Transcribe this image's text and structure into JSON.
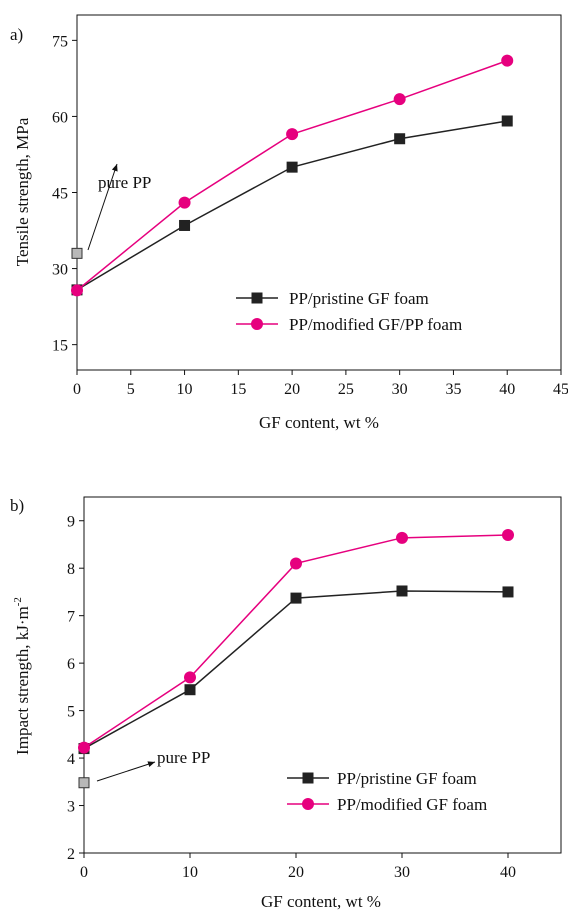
{
  "chart_data": [
    {
      "type": "line",
      "panel_label": "a)",
      "xlabel": "GF content, wt %",
      "ylabel": "Tensile strength, MPa",
      "xlim": [
        0,
        45
      ],
      "ylim": [
        10,
        80
      ],
      "xticks": [
        "0",
        "5",
        "10",
        "15",
        "20",
        "25",
        "30",
        "35",
        "40",
        "45"
      ],
      "yticks": [
        "15",
        "30",
        "45",
        "60",
        "75"
      ],
      "x": [
        0,
        10,
        20,
        30,
        40
      ],
      "series": [
        {
          "name": "PP/pristine GF foam",
          "values": [
            25.8,
            38.5,
            50.0,
            55.6,
            59.1
          ],
          "color": "#222222",
          "marker": "square"
        },
        {
          "name": "PP/modified GF/PP foam",
          "values": [
            25.7,
            43.0,
            56.5,
            63.4,
            71.0
          ],
          "color": "#e6007e",
          "marker": "circle"
        }
      ],
      "annotation": {
        "text": "pure PP",
        "point": [
          0,
          33.0
        ]
      },
      "legend": "center-right"
    },
    {
      "type": "line",
      "panel_label": "b)",
      "xlabel": "GF content, wt %",
      "ylabel_main": "Impact strength, kJ·m",
      "ylabel_sup": "-2",
      "xlim": [
        0,
        45
      ],
      "ylim": [
        2,
        9.5
      ],
      "xticks": [
        "0",
        "10",
        "20",
        "30",
        "40"
      ],
      "yticks": [
        "2",
        "3",
        "4",
        "5",
        "6",
        "7",
        "8",
        "9"
      ],
      "x": [
        0,
        10,
        20,
        30,
        40
      ],
      "series": [
        {
          "name": "PP/pristine GF foam",
          "values": [
            4.2,
            5.44,
            7.37,
            7.52,
            7.5
          ],
          "color": "#222222",
          "marker": "square"
        },
        {
          "name": "PP/modified GF foam",
          "values": [
            4.22,
            5.7,
            8.1,
            8.64,
            8.7
          ],
          "color": "#e6007e",
          "marker": "circle"
        }
      ],
      "annotation": {
        "text": "pure PP",
        "point": [
          0,
          3.48
        ]
      },
      "legend": "lower-right"
    }
  ]
}
